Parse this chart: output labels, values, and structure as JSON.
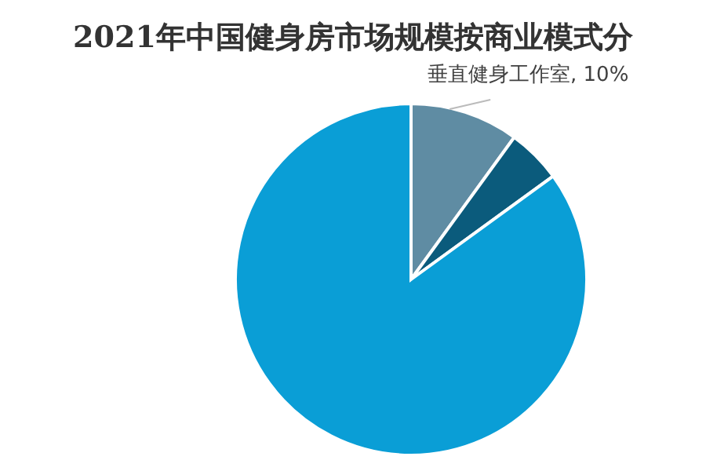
{
  "chart_data": {
    "type": "pie",
    "title": "2021年中国健身房市场规模按商业模式分",
    "categories": [
      "垂直健身工作室",
      null,
      null
    ],
    "values": [
      10,
      5,
      85
    ],
    "colors": [
      "#5f8ca3",
      "#0b5b7c",
      "#0a9ed6"
    ],
    "value_labels": [
      "10%",
      null,
      null
    ]
  }
}
